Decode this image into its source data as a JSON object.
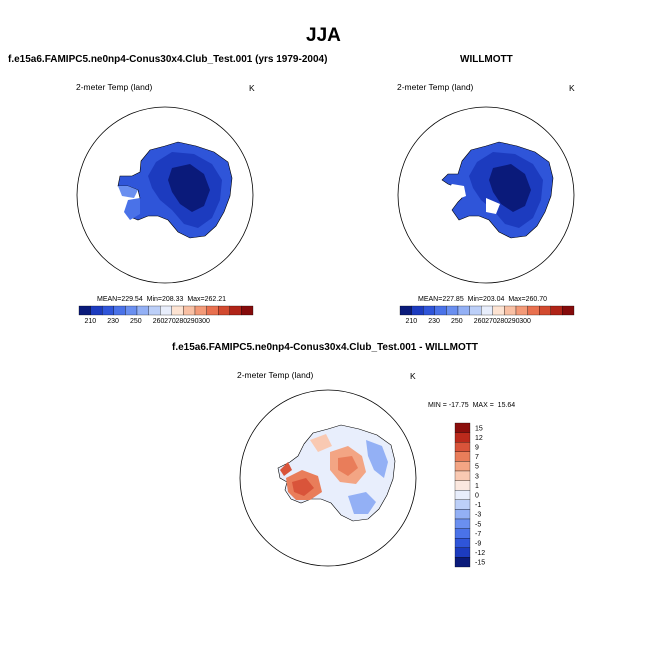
{
  "page": {
    "season_title": "JJA",
    "panel_left_title": "f.e15a6.FAMIPC5.ne0np4-Conus30x4.Club_Test.001 (yrs 1979-2004)",
    "panel_right_title": "WILLMOTT",
    "panel_diff_title": "f.e15a6.FAMIPC5.ne0np4-Conus30x4.Club_Test.001 - WILLMOTT",
    "variable_label": "2-meter Temp (land)",
    "units": "K"
  },
  "colors": {
    "abs_scale": [
      "#0a1a7a",
      "#1c3bbf",
      "#2f55d9",
      "#4a72e8",
      "#6a8ff0",
      "#93b0f5",
      "#bccff8",
      "#e8eefc",
      "#fde3d2",
      "#f9c0a4",
      "#f39a78",
      "#e8704f",
      "#d24a2f",
      "#b02418",
      "#850b0b"
    ],
    "diff_scale": [
      "#0a1a7a",
      "#1c3bbf",
      "#2f55d9",
      "#4a72e8",
      "#6a8ff0",
      "#93b0f5",
      "#bccff8",
      "#e8eefc",
      "#fbe8df",
      "#f9c9b2",
      "#f3a584",
      "#e97d5a",
      "#d9543a",
      "#bb2a1c",
      "#8b0e0c"
    ]
  },
  "chart_data": [
    {
      "type": "heatmap",
      "projection": "south-polar-stereographic",
      "title": "f.e15a6.FAMIPC5.ne0np4-Conus30x4.Club_Test.001 (yrs 1979-2004)",
      "variable": "2-meter Temp (land)",
      "units": "K",
      "stats": {
        "mean_label": "MEAN=",
        "mean": "229.54",
        "min_label": "Min=",
        "min": "208.33",
        "max_label": "Max=",
        "max": "262.21"
      },
      "colorbar_ticks": [
        "210",
        "230",
        "250",
        "260",
        "270",
        "280",
        "290",
        "300"
      ]
    },
    {
      "type": "heatmap",
      "projection": "south-polar-stereographic",
      "title": "WILLMOTT",
      "variable": "2-meter Temp (land)",
      "units": "K",
      "stats": {
        "mean_label": "MEAN=",
        "mean": "227.85",
        "min_label": "Min=",
        "min": "203.04",
        "max_label": "Max=",
        "max": "260.70"
      },
      "colorbar_ticks": [
        "210",
        "230",
        "250",
        "260",
        "270",
        "280",
        "290",
        "300"
      ]
    },
    {
      "type": "heatmap",
      "projection": "south-polar-stereographic",
      "title": "f.e15a6.FAMIPC5.ne0np4-Conus30x4.Club_Test.001 - WILLMOTT",
      "variable": "2-meter Temp (land)",
      "units": "K",
      "stats": {
        "min_label": "MIN =",
        "min": "-17.75",
        "max_label": "MAX =",
        "max": "15.64"
      },
      "colorbar_ticks": [
        "15",
        "12",
        "9",
        "7",
        "5",
        "3",
        "1",
        "0",
        "-1",
        "-3",
        "-5",
        "-7",
        "-9",
        "-12",
        "-15"
      ]
    }
  ]
}
